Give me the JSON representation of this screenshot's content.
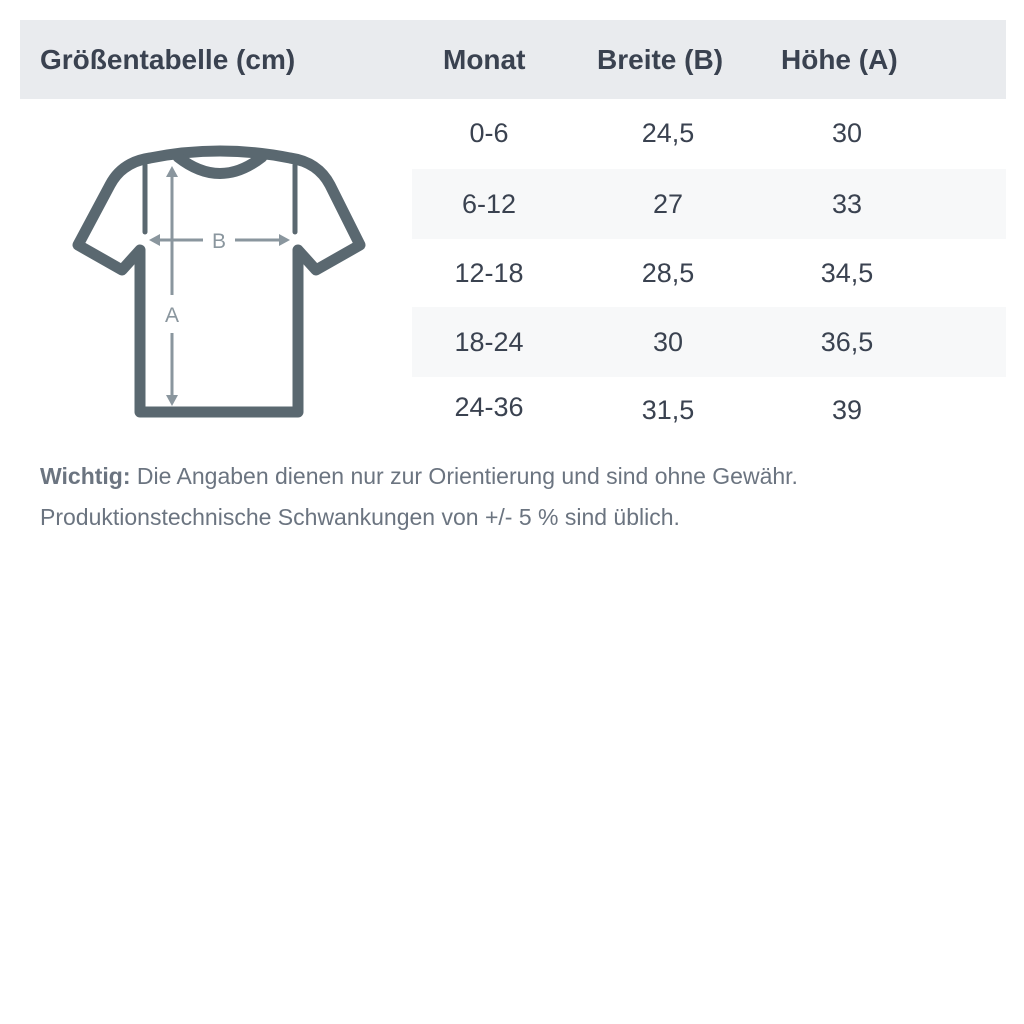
{
  "header": {
    "title": "Größentabelle (cm)",
    "columns": [
      "Monat",
      "Breite (B)",
      "Höhe (A)"
    ]
  },
  "diagram": {
    "label_width": "B",
    "label_height": "A",
    "outline_color": "#5a6870",
    "arrow_color": "#8a969e"
  },
  "rows": [
    {
      "month": "0-6",
      "width": "24,5",
      "height": "30"
    },
    {
      "month": "6-12",
      "width": "27",
      "height": "33"
    },
    {
      "month": "12-18",
      "width": "28,5",
      "height": "34,5"
    },
    {
      "month": "18-24",
      "width": "30",
      "height": "36,5"
    },
    {
      "month": "24-36",
      "width": "31,5",
      "height": "39"
    }
  ],
  "note": {
    "label": "Wichtig:",
    "line1": "Die Angaben dienen nur zur Orientierung und sind ohne Gewähr.",
    "line2": "Produktionstechnische Schwankungen von +/- 5 % sind üblich."
  }
}
